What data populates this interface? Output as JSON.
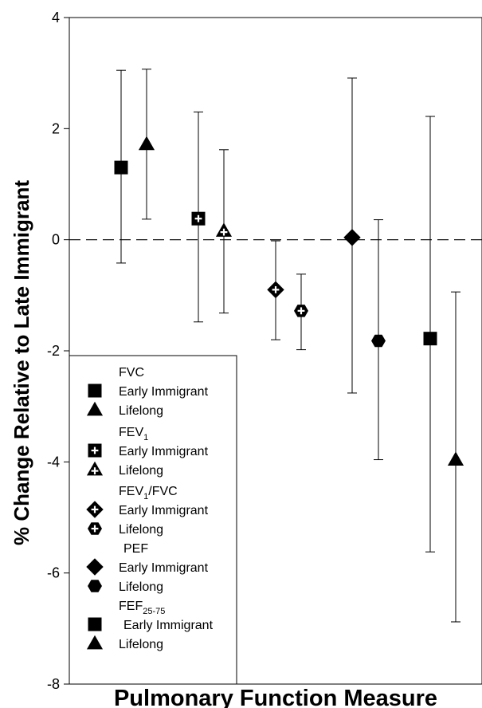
{
  "chart_data": {
    "type": "scatter",
    "xlabel": "Pulmonary Function Measure",
    "ylabel": "% Change Relative to Late Immigrant",
    "ylim": [
      -8,
      4
    ],
    "yticks": [
      -8,
      -6,
      -4,
      -2,
      0,
      2,
      4
    ],
    "reference_line": {
      "y": 0,
      "style": "dashed"
    },
    "grid": false,
    "legend_position": "bottom-left",
    "groups": [
      {
        "label": "FVC",
        "label_sub": "",
        "label_main": "FVC",
        "points": [
          {
            "series": "Early Immigrant",
            "marker": "filled-square",
            "value": 1.3,
            "ci": [
              -0.42,
              3.05
            ]
          },
          {
            "series": "Lifelong",
            "marker": "filled-triangle",
            "value": 1.72,
            "ci": [
              0.37,
              3.07
            ]
          }
        ]
      },
      {
        "label": "FEV1",
        "label_main": "FEV",
        "label_sub": "1",
        "points": [
          {
            "series": "Early Immigrant",
            "marker": "cross-square",
            "value": 0.38,
            "ci": [
              -1.48,
              2.3
            ]
          },
          {
            "series": "Lifelong",
            "marker": "cross-triangle",
            "value": 0.16,
            "ci": [
              -1.32,
              1.62
            ]
          }
        ]
      },
      {
        "label": "FEV1/FVC",
        "label_main": "FEV",
        "label_sub": "1",
        "label_suffix": "/FVC",
        "points": [
          {
            "series": "Early Immigrant",
            "marker": "cross-diamond",
            "value": -0.9,
            "ci": [
              -1.8,
              -0.02
            ]
          },
          {
            "series": "Lifelong",
            "marker": "cross-hexagon",
            "value": -1.28,
            "ci": [
              -1.98,
              -0.62
            ]
          }
        ]
      },
      {
        "label": "PEF",
        "label_main": "PEF",
        "label_sub": "",
        "points": [
          {
            "series": "Early Immigrant",
            "marker": "filled-diamond",
            "value": 0.04,
            "ci": [
              -2.76,
              2.91
            ]
          },
          {
            "series": "Lifelong",
            "marker": "filled-hexagon",
            "value": -1.82,
            "ci": [
              -3.96,
              0.36
            ]
          }
        ]
      },
      {
        "label": "FEF25-75",
        "label_main": "FEF",
        "label_sub": "25-75",
        "points": [
          {
            "series": "Early Immigrant",
            "marker": "filled-square",
            "value": -1.78,
            "ci": [
              -5.62,
              2.22
            ]
          },
          {
            "series": "Lifelong",
            "marker": "filled-triangle",
            "value": -3.96,
            "ci": [
              -6.88,
              -0.94
            ]
          }
        ]
      }
    ]
  }
}
